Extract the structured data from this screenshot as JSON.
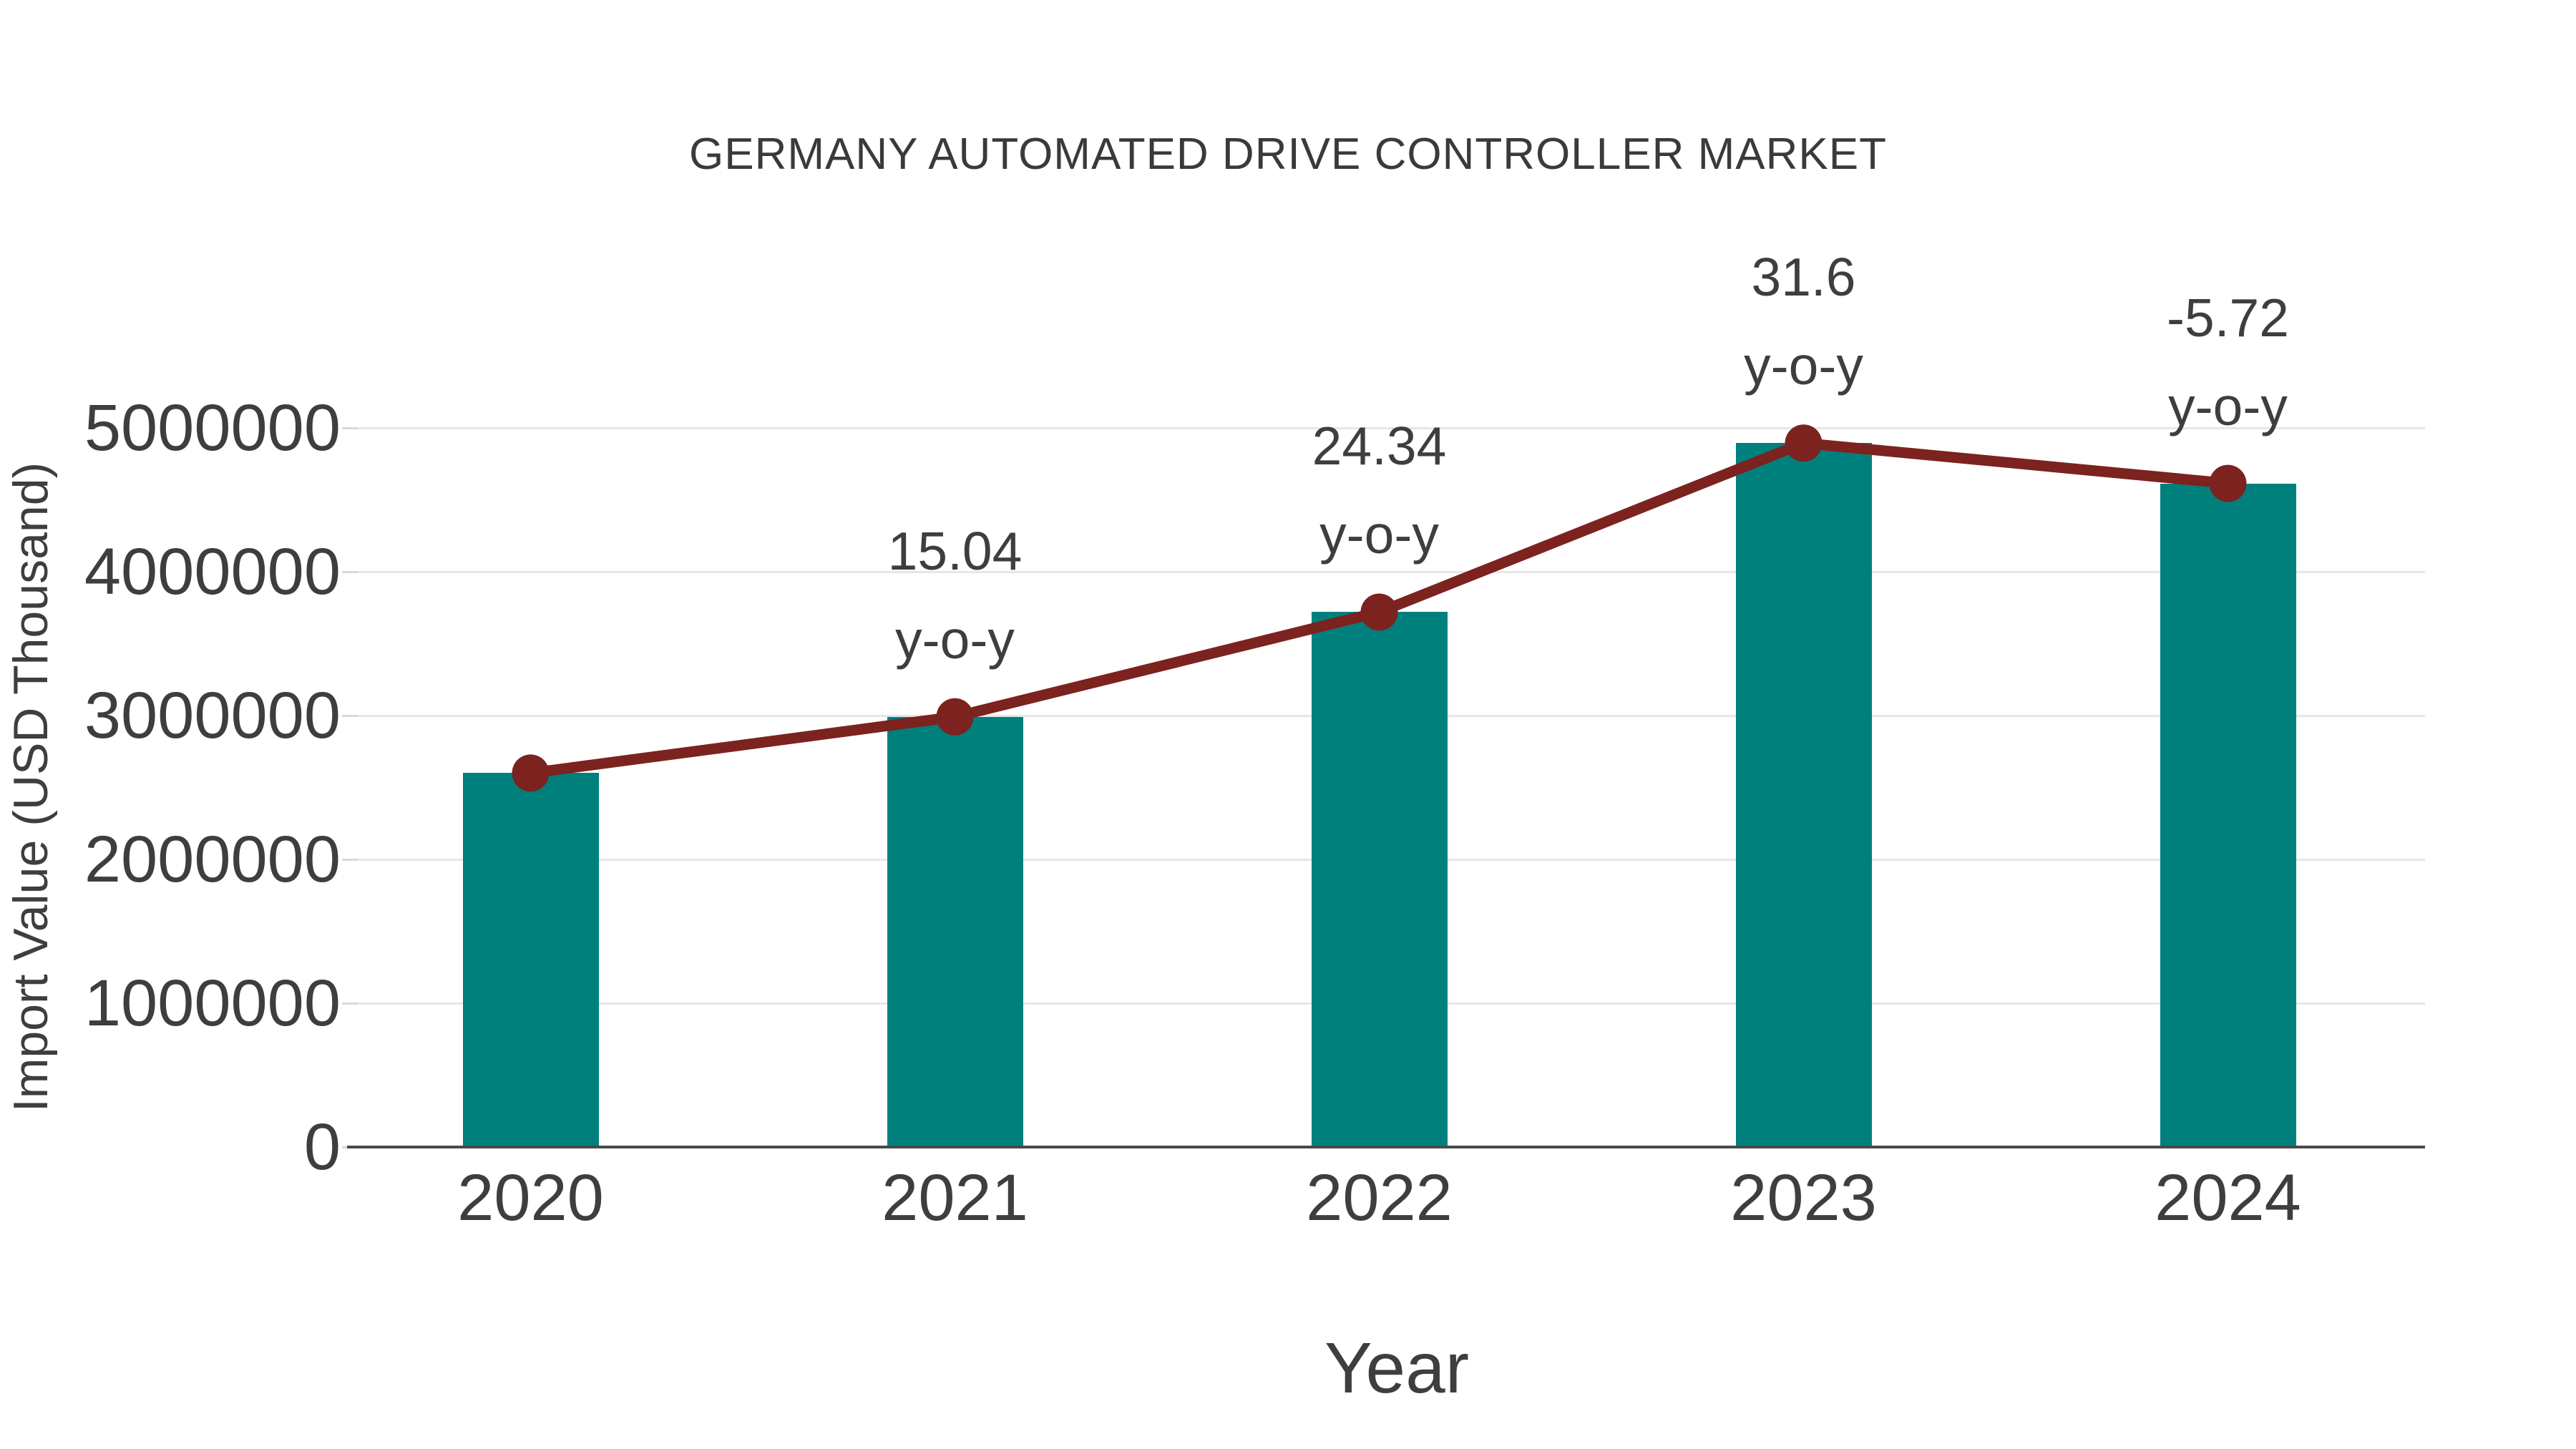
{
  "chart_data": {
    "type": "bar+line",
    "title": "GERMANY AUTOMATED DRIVE CONTROLLER MARKET",
    "xlabel": "Year",
    "ylabel": "Import Value (USD Thousand)",
    "categories": [
      "2020",
      "2021",
      "2022",
      "2023",
      "2024"
    ],
    "series": [
      {
        "name": "import-value-bars",
        "type": "bar",
        "color": "#00807D",
        "values": [
          2600000,
          2991000,
          3719000,
          4894000,
          4614000
        ]
      },
      {
        "name": "import-value-trend",
        "type": "line",
        "color": "#7C221F",
        "values": [
          2600000,
          2991000,
          3719000,
          4894000,
          4614000
        ]
      }
    ],
    "yoy_annotations": [
      {
        "category": "2021",
        "value": "15.04",
        "suffix": "y-o-y"
      },
      {
        "category": "2022",
        "value": "24.34",
        "suffix": "y-o-y"
      },
      {
        "category": "2023",
        "value": "31.6",
        "suffix": "y-o-y"
      },
      {
        "category": "2024",
        "value": "-5.72",
        "suffix": "y-o-y"
      }
    ],
    "ylim": [
      0,
      5000000
    ],
    "ytick_interval": 1000000,
    "yticks": [
      "0",
      "1000000",
      "2000000",
      "3000000",
      "4000000",
      "5000000"
    ],
    "grid": true,
    "legend_position": "none"
  },
  "colors": {
    "bar": "#00807D",
    "line": "#7C221F",
    "marker": "#7C221F",
    "text": "#3E3E3E",
    "grid": "#E7E7E7",
    "tick": "#D9D9D9",
    "axis": "#4A4A4A",
    "background": "#FFFFFF"
  }
}
